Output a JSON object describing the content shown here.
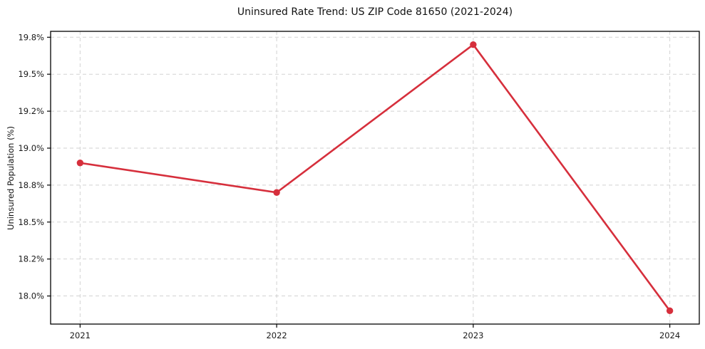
{
  "chart_data": {
    "type": "line",
    "title": "Uninsured Rate Trend: US ZIP Code 81650 (2021-2024)",
    "xlabel": "",
    "ylabel": "Uninsured Population (%)",
    "x": [
      2021,
      2022,
      2023,
      2024
    ],
    "values": [
      18.9,
      18.7,
      19.7,
      17.9
    ],
    "x_tick_labels": [
      "2021",
      "2022",
      "2023",
      "2024"
    ],
    "y_ticks": [
      18.0,
      18.25,
      18.5,
      18.75,
      19.0,
      19.25,
      19.5,
      19.75
    ],
    "y_tick_labels": [
      "18.0%",
      "18.2%",
      "18.5%",
      "18.8%",
      "19.0%",
      "19.2%",
      "19.5%",
      "19.8%"
    ],
    "xlim": [
      2020.85,
      2024.15
    ],
    "ylim": [
      17.81,
      19.79
    ],
    "grid": true,
    "legend": false,
    "line_color": "#d62f3c",
    "marker": "circle"
  }
}
